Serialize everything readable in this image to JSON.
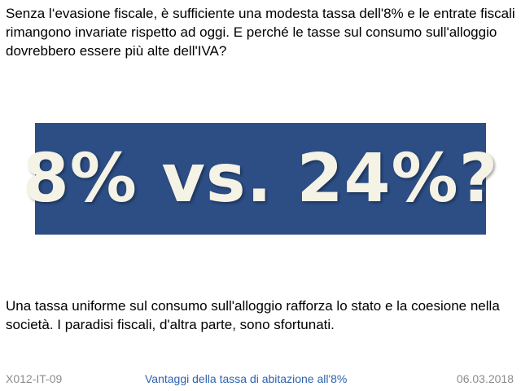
{
  "slide": {
    "intro_text": "Senza l‘evasione fiscale, è sufficiente una modesta tassa dell'8% e le entrate fiscali rimangono invariate rispetto ad oggi. E perché le tasse sul consumo sull'alloggio dovrebbero essere più alte dell'IVA?",
    "banner_text": "8% vs. 24%?",
    "outro_text": "Una tassa uniforme sul consumo sull'alloggio rafforza lo stato e la coesione nella società. I paradisi fiscali, d'altra parte, sono sfortunati."
  },
  "footer": {
    "code": "X012-IT-09",
    "title": "Vantaggi della tassa di abitazione all'8%",
    "date": "06.03.2018"
  },
  "colors": {
    "banner_background": "#2c4e85",
    "banner_text": "#f5f2e6",
    "footer_title": "#2e62b0",
    "footer_muted": "#8c8c8c"
  }
}
